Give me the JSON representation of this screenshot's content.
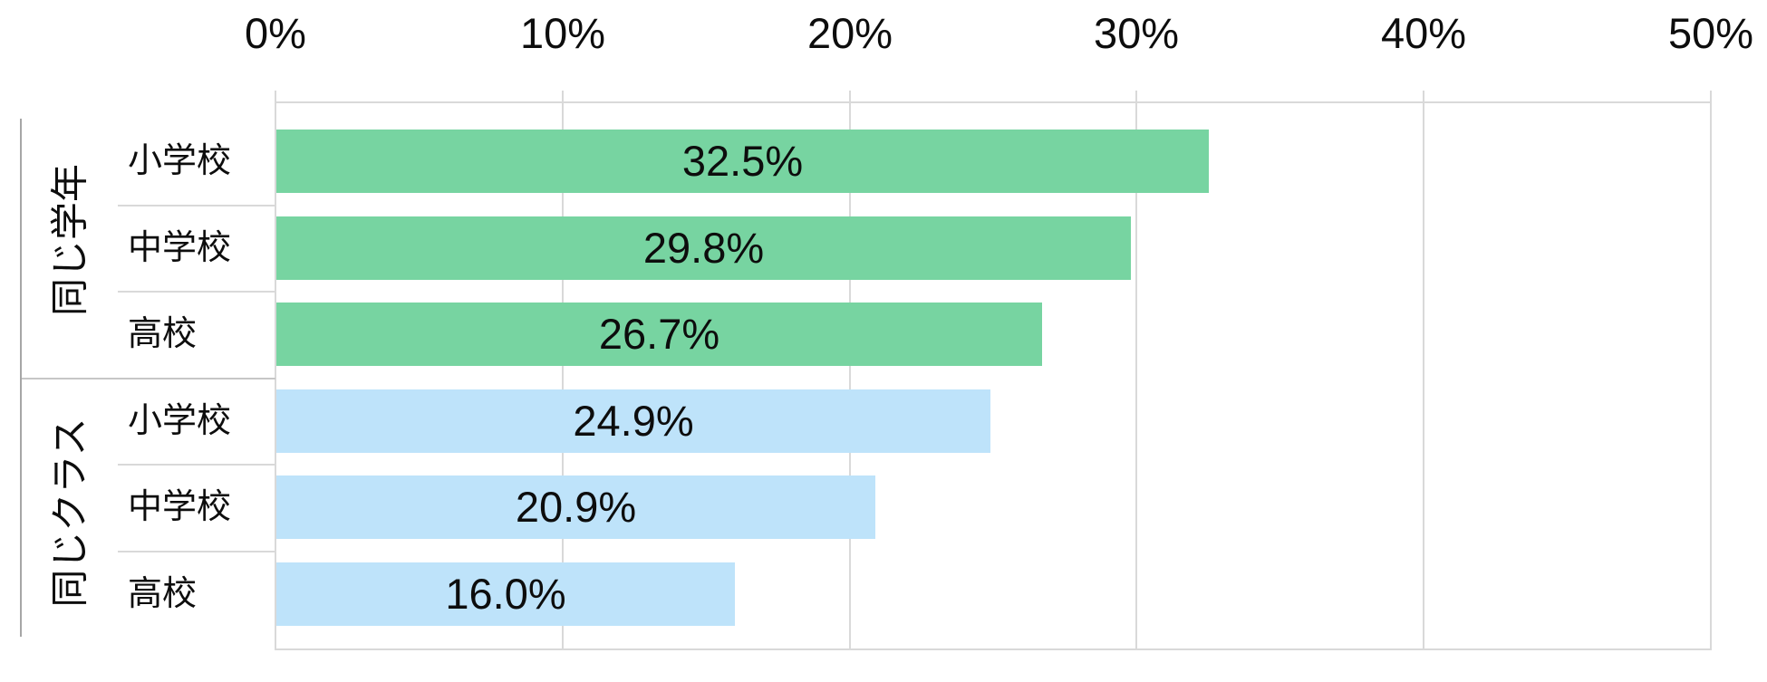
{
  "chart_data": {
    "type": "bar",
    "orientation": "horizontal",
    "title": "",
    "legend": "none",
    "grid": true,
    "x_axis": {
      "position": "top",
      "min": 0,
      "max": 50,
      "tick_step": 10,
      "tick_labels": [
        "0%",
        "10%",
        "20%",
        "30%",
        "40%",
        "50%"
      ]
    },
    "groups": [
      {
        "label": "同じ学年",
        "bar_color": "#77d4a1",
        "items": [
          {
            "category": "小学校",
            "value": 32.5,
            "value_label": "32.5%"
          },
          {
            "category": "中学校",
            "value": 29.8,
            "value_label": "29.8%"
          },
          {
            "category": "高校",
            "value": 26.7,
            "value_label": "26.7%"
          }
        ]
      },
      {
        "label": "同じクラス",
        "bar_color": "#bee3fa",
        "items": [
          {
            "category": "小学校",
            "value": 24.9,
            "value_label": "24.9%"
          },
          {
            "category": "中学校",
            "value": 20.9,
            "value_label": "20.9%"
          },
          {
            "category": "高校",
            "value": 16.0,
            "value_label": "16.0%"
          }
        ]
      }
    ],
    "colors": {
      "gridline": "#d9d9d9",
      "category_separator": "#d9d9d9",
      "group_boundary": "#c6c6c6",
      "group_axis_line": "#a6a6a6",
      "label_text": "#0d0d0d",
      "background": "#ffffff"
    }
  }
}
